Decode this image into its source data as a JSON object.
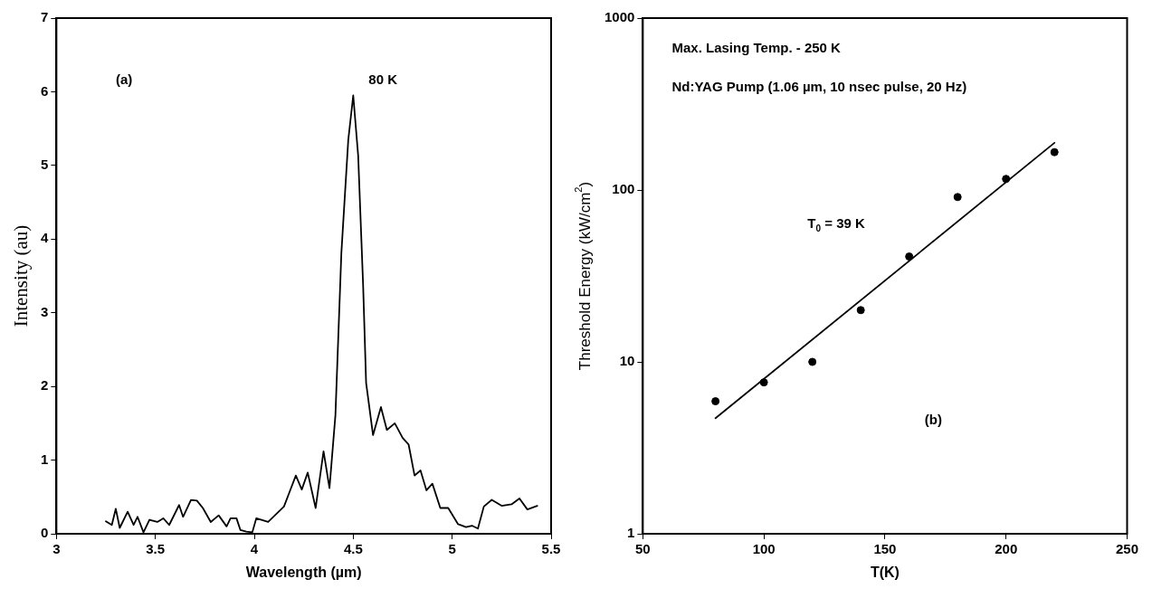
{
  "chart_data": [
    {
      "type": "line",
      "xlabel": "Wavelength (µm)",
      "ylabel": "Intensity (au)",
      "xlim": [
        3,
        5.5
      ],
      "xticks": [
        3,
        3.5,
        4,
        4.5,
        5,
        5.5
      ],
      "ylim": [
        0,
        7
      ],
      "yticks": [
        0,
        1,
        2,
        3,
        4,
        5,
        6,
        7
      ],
      "marker": "none",
      "line_style": "solid",
      "annotations": [
        "(a)",
        "80 K"
      ],
      "x": [
        3.25,
        3.28,
        3.3,
        3.32,
        3.36,
        3.39,
        3.41,
        3.44,
        3.47,
        3.51,
        3.54,
        3.57,
        3.62,
        3.64,
        3.68,
        3.71,
        3.74,
        3.78,
        3.82,
        3.86,
        3.88,
        3.91,
        3.93,
        3.96,
        3.99,
        4.01,
        4.07,
        4.15,
        4.18,
        4.21,
        4.24,
        4.27,
        4.31,
        4.35,
        4.38,
        4.41,
        4.44,
        4.475,
        4.5,
        4.525,
        4.55,
        4.565,
        4.6,
        4.64,
        4.67,
        4.71,
        4.75,
        4.78,
        4.81,
        4.84,
        4.87,
        4.9,
        4.94,
        4.98,
        5.03,
        5.07,
        5.1,
        5.13,
        5.16,
        5.2,
        5.25,
        5.3,
        5.34,
        5.38,
        5.43
      ],
      "series": [
        {
          "color": "#000000",
          "values": [
            0.17,
            0.12,
            0.34,
            0.08,
            0.3,
            0.12,
            0.23,
            0.02,
            0.19,
            0.16,
            0.21,
            0.12,
            0.39,
            0.23,
            0.46,
            0.45,
            0.35,
            0.16,
            0.25,
            0.1,
            0.21,
            0.21,
            0.05,
            0.03,
            0.02,
            0.21,
            0.16,
            0.37,
            0.58,
            0.79,
            0.6,
            0.83,
            0.35,
            1.12,
            0.62,
            1.61,
            3.81,
            5.35,
            5.95,
            5.13,
            3.37,
            2.05,
            1.34,
            1.72,
            1.41,
            1.5,
            1.3,
            1.21,
            0.79,
            0.86,
            0.59,
            0.68,
            0.35,
            0.35,
            0.13,
            0.09,
            0.11,
            0.07,
            0.37,
            0.46,
            0.38,
            0.4,
            0.48,
            0.33,
            0.38
          ]
        }
      ]
    },
    {
      "type": "scatter",
      "xlabel": "T(K)",
      "ylabel": "Threshold Energy (kW/cm$^{2}$)",
      "xlim": [
        50,
        250
      ],
      "xticks": [
        50,
        100,
        150,
        200,
        250
      ],
      "ylim": [
        1,
        1000
      ],
      "yticks": [
        1,
        10,
        100,
        1000
      ],
      "log": "y",
      "annotations": [
        "Max. Lasing Temp. - 250 K",
        "Nd:YAG Pump (1.06 µm, 10 nsec pulse, 20 Hz)",
        "T$_{0}$ = 39 K",
        "(b)"
      ],
      "series": [
        {
          "color": "#000000",
          "marker": "circle",
          "x": [
            80,
            100,
            120,
            140,
            160,
            180,
            200,
            220
          ],
          "values": [
            5.9,
            7.6,
            10,
            20,
            41,
            91,
            116,
            166
          ]
        },
        {
          "type": "line",
          "color": "#000000",
          "marker": "none",
          "x": [
            80,
            220
          ],
          "values": [
            4.7,
            188
          ]
        }
      ]
    }
  ]
}
